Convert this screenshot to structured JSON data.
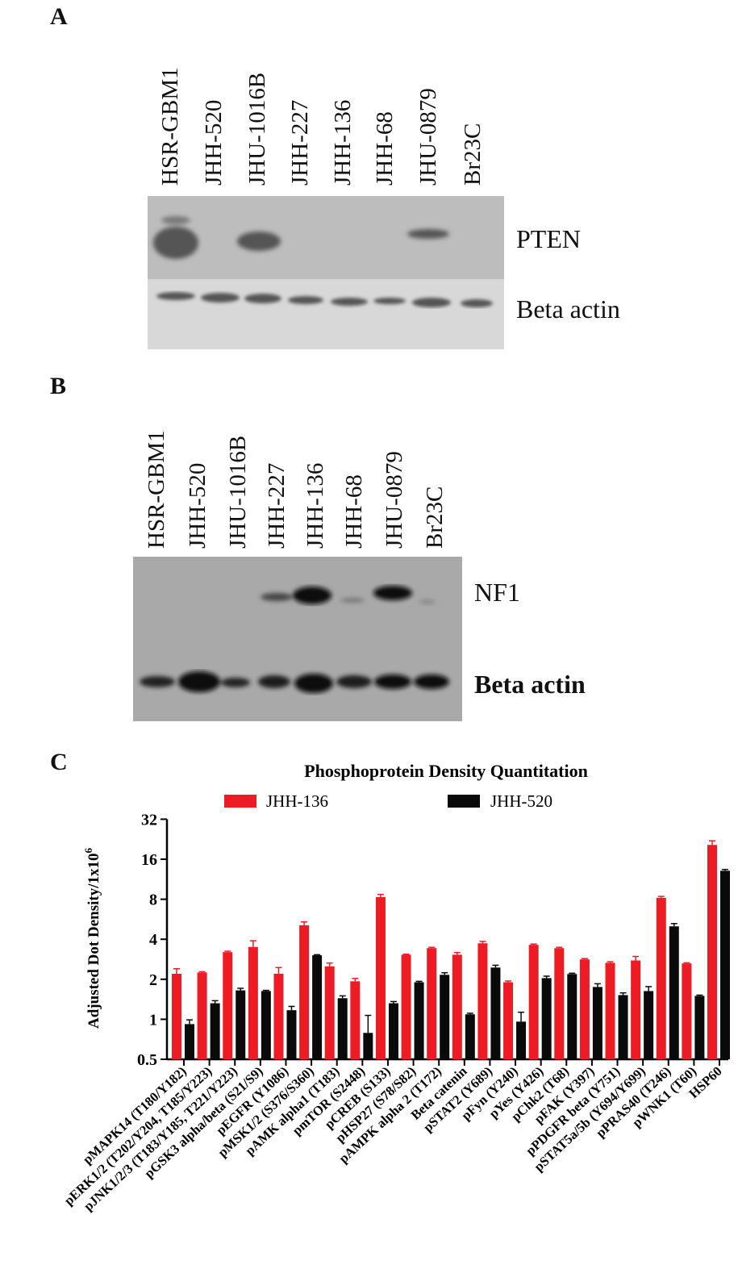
{
  "panel_a": {
    "label": "A",
    "lanes": [
      "HSR-GBM1",
      "JHH-520",
      "JHU-1016B",
      "JHH-227",
      "JHH-136",
      "JHH-68",
      "JHU-0879",
      "Br23C"
    ],
    "bands": [
      "PTEN",
      "Beta actin"
    ]
  },
  "panel_b": {
    "label": "B",
    "lanes": [
      "HSR-GBM1",
      "JHH-520",
      "JHU-1016B",
      "JHH-227",
      "JHH-136",
      "JHH-68",
      "JHU-0879",
      "Br23C"
    ],
    "bands": [
      "NF1",
      "Beta actin"
    ]
  },
  "panel_c": {
    "label": "C"
  },
  "colors": {
    "jhh136": "#ed1c24",
    "jhh520": "#0a0a0a"
  },
  "chart_data": {
    "type": "bar",
    "title": "Phosphoprotein Density Quantitation",
    "ylabel": "Adjusted Dot Density/1x10",
    "ylabel_sup": "6",
    "yscale": "log2",
    "ylim": [
      0.5,
      32
    ],
    "yticks": [
      "0.5",
      "1",
      "2",
      "4",
      "8",
      "16",
      "32"
    ],
    "legend_placement": "top",
    "categories": [
      "pMAPK14 (T180/Y182)",
      "pERK1/2 (T202/Y204, T185/Y223)",
      "pJNK1/2/3 (T183/Y185, T221/Y223)",
      "pGSK3 alpha/beta (S21/S9)",
      "pEGFR (Y1086)",
      "pMSK1/2 (S376/S360)",
      "pAMK alpha1 (T183)",
      "pmTOR (S2448)",
      "pCREB (S133)",
      "pHSP27 (S78/S82)",
      "pAMPK alpha 2 (T172)",
      "Beta catenin",
      "pSTAT2 (Y689)",
      "pFyn (Y240)",
      "pYes (Y426)",
      "pChk2 (T68)",
      "pFAK (Y397)",
      "pPDGFR beta (Y751)",
      "pSTAT5a/5b (Y694/Y699)",
      "pPRAS40 (T246)",
      "pWNK1 (T60)",
      "HSP60"
    ],
    "series": [
      {
        "name": "JHH-136",
        "values": [
          2.2,
          2.25,
          3.2,
          3.5,
          2.2,
          5.1,
          2.5,
          1.93,
          8.3,
          3.06,
          3.43,
          3.06,
          3.73,
          1.9,
          3.63,
          3.43,
          2.82,
          2.66,
          2.77,
          8.2,
          2.63,
          20.5
        ],
        "errors": [
          0.2,
          0.03,
          0.05,
          0.4,
          0.25,
          0.3,
          0.15,
          0.1,
          0.4,
          0.03,
          0.05,
          0.12,
          0.12,
          0.04,
          0.05,
          0.05,
          0.04,
          0.05,
          0.2,
          0.2,
          0.03,
          1.5
        ]
      },
      {
        "name": "JHH-520",
        "values": [
          0.92,
          1.32,
          1.65,
          1.63,
          1.17,
          3.03,
          1.44,
          0.79,
          1.32,
          1.9,
          2.16,
          1.09,
          2.45,
          0.96,
          2.04,
          2.19,
          1.75,
          1.52,
          1.63,
          5.0,
          1.5,
          13.1
        ],
        "errors": [
          0.07,
          0.06,
          0.06,
          0.02,
          0.08,
          0.03,
          0.06,
          0.28,
          0.04,
          0.03,
          0.08,
          0.02,
          0.1,
          0.17,
          0.07,
          0.03,
          0.1,
          0.06,
          0.13,
          0.25,
          0.02,
          0.3
        ]
      }
    ]
  }
}
